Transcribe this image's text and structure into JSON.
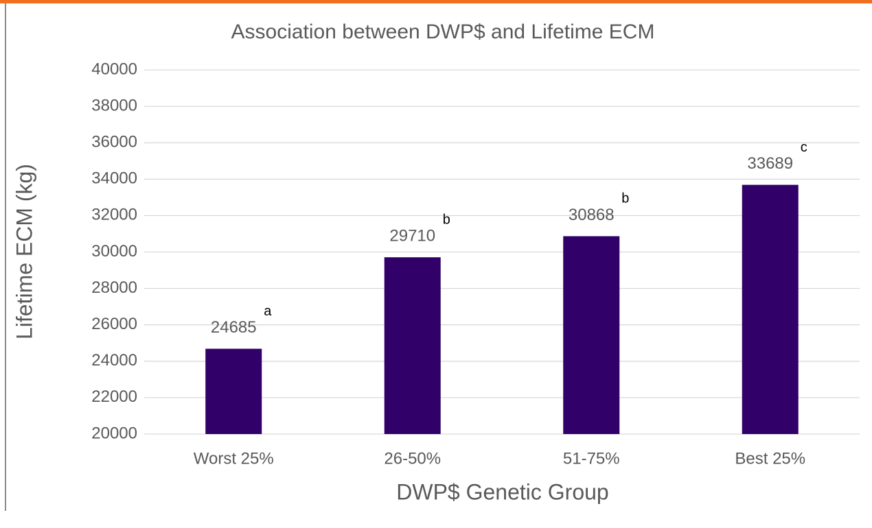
{
  "chart_data": {
    "type": "bar",
    "title": "Association between DWP$ and Lifetime ECM",
    "x_label": "DWP$ Genetic Group",
    "y_label": "Lifetime ECM (kg)",
    "categories": [
      "Worst 25%",
      "26-50%",
      "51-75%",
      "Best 25%"
    ],
    "values": [
      24685,
      29710,
      30868,
      33689
    ],
    "value_annotations": [
      "a",
      "b",
      "b",
      "c"
    ],
    "color": "#310068",
    "ylim": [
      20000,
      40000
    ],
    "yticks": [
      20000,
      22000,
      24000,
      26000,
      28000,
      30000,
      32000,
      34000,
      36000,
      38000,
      40000
    ],
    "grid": true
  }
}
